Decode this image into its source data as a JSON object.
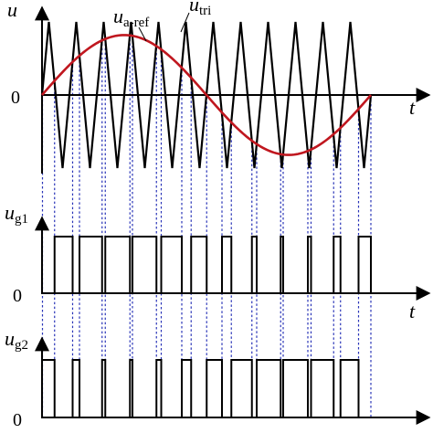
{
  "labels": {
    "u": "u",
    "zero": "0",
    "t": "t",
    "ug1_base": "u",
    "ug1_sub": "g1",
    "ug2_base": "u",
    "ug2_sub": "g2",
    "ref_base": "u",
    "ref_sub": "a-ref",
    "tri_base": "u",
    "tri_sub": "tri"
  },
  "colors": {
    "axis": "#000000",
    "carrier": "#000000",
    "reference": "#c0171f",
    "guide": "#2a35b8",
    "pulse": "#000000"
  },
  "waveform": {
    "carrier_periods": 12,
    "carrier_min": -1,
    "carrier_max": 1,
    "reference_amplitude": 0.82,
    "reference_cycles": 1
  }
}
